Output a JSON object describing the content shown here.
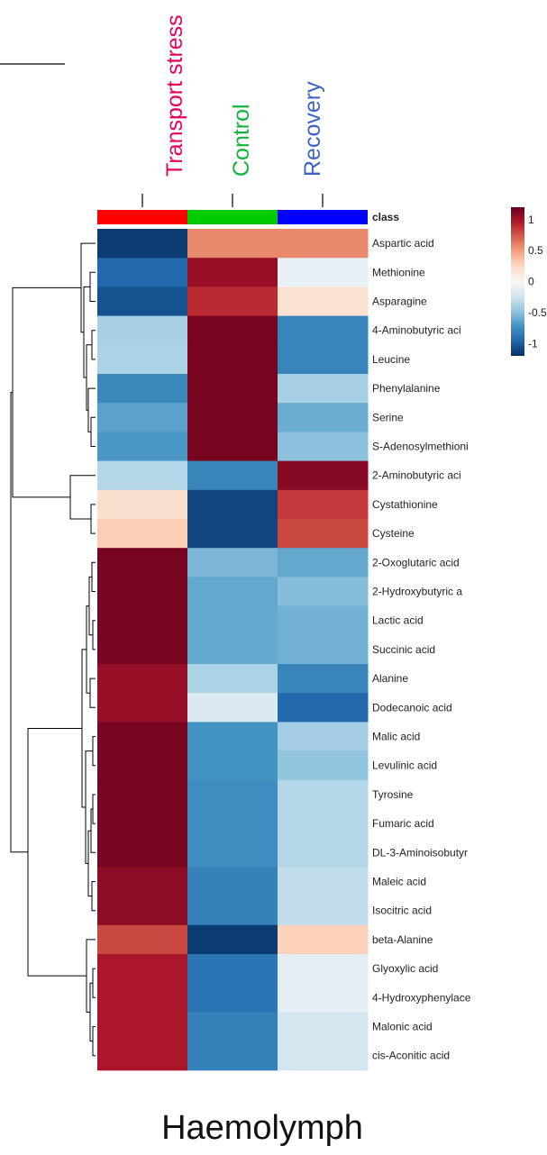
{
  "figure": {
    "footer_title": "Haemolymph"
  },
  "chart_data": {
    "type": "heatmap",
    "title": "",
    "columns": [
      {
        "name": "Transport stress",
        "color": "#e8005e"
      },
      {
        "name": "Control",
        "color": "#15b33c"
      },
      {
        "name": "Recovery",
        "color": "#3d63c6"
      }
    ],
    "class_bar": {
      "label": "class",
      "colors": [
        "#ff0000",
        "#00cc00",
        "#0000ff"
      ]
    },
    "rows": [
      "Aspartic acid",
      "Methionine",
      "Asparagine",
      "4-Aminobutyric aci",
      "Leucine",
      "Phenylalanine",
      "Serine",
      "S-Adenosylmethioni",
      "2-Aminobutyric aci",
      "Cystathionine",
      "Cysteine",
      "2-Oxoglutaric acid",
      "2-Hydroxybutyric a",
      "Lactic acid",
      "Succinic acid",
      "Alanine",
      "Dodecanoic acid",
      "Malic acid",
      "Levulinic acid",
      "Tyrosine",
      "Fumaric acid",
      "DL-3-Aminoisobutyr",
      "Maleic acid",
      "Isocitric acid",
      "beta-Alanine",
      "Glyoxylic acid",
      "4-Hydroxyphenylace",
      "Malonic acid",
      "cis-Aconitic acid"
    ],
    "values": [
      [
        -1.15,
        0.58,
        0.58
      ],
      [
        -0.95,
        1.05,
        -0.1
      ],
      [
        -1.05,
        0.9,
        0.18
      ],
      [
        -0.4,
        1.15,
        -0.8
      ],
      [
        -0.38,
        1.15,
        -0.8
      ],
      [
        -0.78,
        1.15,
        -0.4
      ],
      [
        -0.65,
        1.15,
        -0.6
      ],
      [
        -0.7,
        1.15,
        -0.5
      ],
      [
        -0.35,
        -0.8,
        1.1
      ],
      [
        0.2,
        -1.1,
        0.85
      ],
      [
        0.3,
        -1.1,
        0.8
      ],
      [
        1.15,
        -0.55,
        -0.62
      ],
      [
        1.15,
        -0.62,
        -0.52
      ],
      [
        1.15,
        -0.62,
        -0.58
      ],
      [
        1.15,
        -0.62,
        -0.58
      ],
      [
        1.05,
        -0.38,
        -0.8
      ],
      [
        1.05,
        -0.18,
        -0.95
      ],
      [
        1.15,
        -0.72,
        -0.42
      ],
      [
        1.15,
        -0.72,
        -0.48
      ],
      [
        1.15,
        -0.75,
        -0.35
      ],
      [
        1.15,
        -0.75,
        -0.35
      ],
      [
        1.15,
        -0.75,
        -0.35
      ],
      [
        1.08,
        -0.82,
        -0.3
      ],
      [
        1.08,
        -0.82,
        -0.3
      ],
      [
        0.8,
        -1.15,
        0.28
      ],
      [
        0.98,
        -0.88,
        -0.12
      ],
      [
        0.98,
        -0.88,
        -0.12
      ],
      [
        0.98,
        -0.82,
        -0.22
      ],
      [
        0.98,
        -0.82,
        -0.22
      ]
    ],
    "color_scale": {
      "min": -1.2,
      "max": 1.2,
      "ticks": [
        "1",
        "0.5",
        "0",
        "-0.5",
        "-1"
      ],
      "tick_values": [
        1,
        0.5,
        0,
        -0.5,
        -1
      ],
      "stops": [
        "#053061",
        "#2166ac",
        "#4393c3",
        "#92c5de",
        "#d1e5f0",
        "#f7f7f7",
        "#fddbc7",
        "#f4a582",
        "#d6604d",
        "#b2182b",
        "#67001f"
      ]
    },
    "row_dendrogram": true
  }
}
